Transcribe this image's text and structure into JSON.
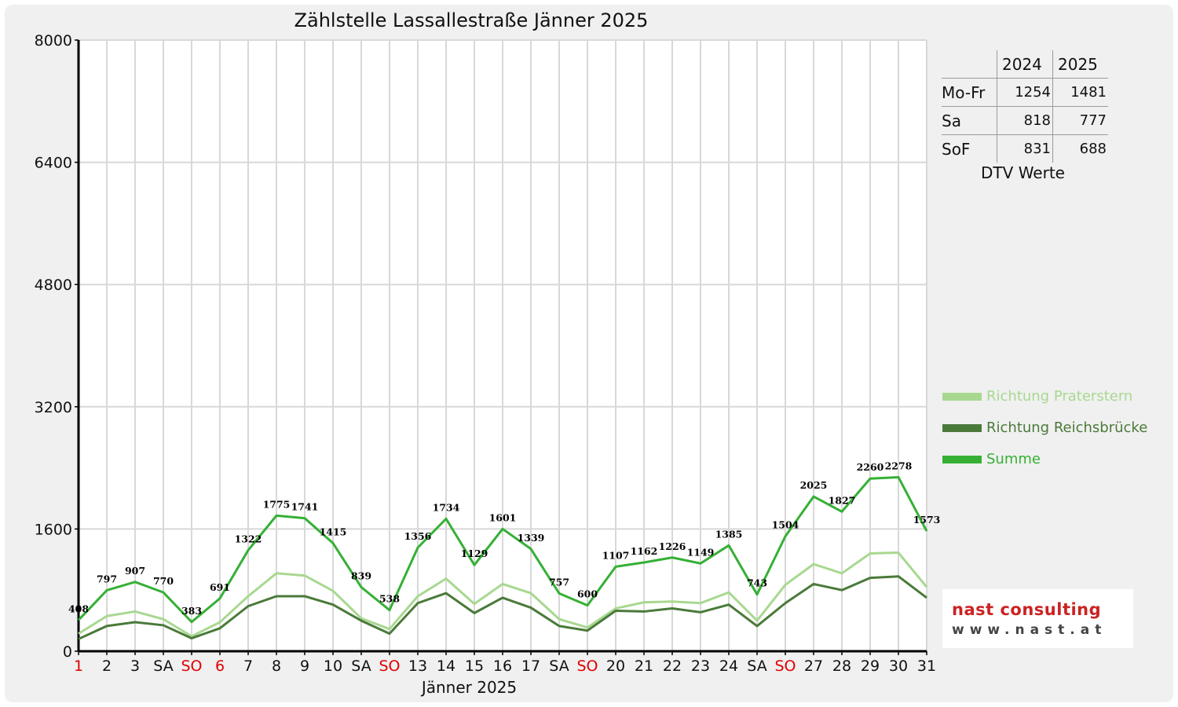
{
  "title": "Zählstelle Lassallestraße Jänner 2025",
  "chart_data": {
    "type": "line",
    "title": "Zählstelle Lassallestraße Jänner 2025",
    "xlabel": "Jänner 2025",
    "ylabel": "",
    "ylim": [
      0,
      8000
    ],
    "yticks": [
      0,
      1600,
      3200,
      4800,
      6400,
      8000
    ],
    "grid": true,
    "legend_position": "right",
    "categories": [
      "1",
      "2",
      "3",
      "SA",
      "SO",
      "6",
      "7",
      "8",
      "9",
      "10",
      "SA",
      "SO",
      "13",
      "14",
      "15",
      "16",
      "17",
      "SA",
      "SO",
      "20",
      "21",
      "22",
      "23",
      "24",
      "SA",
      "SO",
      "27",
      "28",
      "29",
      "30",
      "31"
    ],
    "red_categories": [
      0,
      4,
      5,
      11,
      18,
      25
    ],
    "series": [
      {
        "name": "Richtung Praterstern",
        "color": "#a8d890",
        "values": [
          230,
          460,
          520,
          420,
          195,
          380,
          720,
          1020,
          990,
          790,
          430,
          290,
          720,
          950,
          620,
          880,
          760,
          420,
          310,
          560,
          640,
          650,
          630,
          770,
          400,
          870,
          1140,
          1020,
          1280,
          1290,
          840
        ],
        "show_labels": false
      },
      {
        "name": "Richtung Reichsbrücke",
        "color": "#4a7a3a",
        "values": [
          160,
          330,
          380,
          340,
          170,
          300,
          590,
          720,
          720,
          610,
          400,
          230,
          630,
          760,
          500,
          700,
          570,
          330,
          270,
          530,
          520,
          560,
          510,
          610,
          330,
          630,
          880,
          800,
          960,
          980,
          700
        ],
        "show_labels": false
      },
      {
        "name": "Summe",
        "color": "#35b035",
        "values": [
          408,
          797,
          907,
          770,
          383,
          691,
          1322,
          1775,
          1741,
          1415,
          839,
          538,
          1356,
          1734,
          1129,
          1601,
          1339,
          757,
          600,
          1107,
          1162,
          1226,
          1149,
          1385,
          743,
          1504,
          2025,
          1827,
          2260,
          2278,
          1573
        ],
        "show_labels": true
      }
    ]
  },
  "dtv_table": {
    "caption": "DTV Werte",
    "years": [
      "2024",
      "2025"
    ],
    "rows": [
      {
        "label": "Mo-Fr",
        "values": [
          "1254",
          "1481"
        ]
      },
      {
        "label": "Sa",
        "values": [
          "818",
          "777"
        ]
      },
      {
        "label": "SoF",
        "values": [
          "831",
          "688"
        ]
      }
    ]
  },
  "legend": [
    {
      "label": "Richtung Praterstern",
      "color": "#a8d890"
    },
    {
      "label": "Richtung Reichsbrücke",
      "color": "#4a7a3a"
    },
    {
      "label": "Summe",
      "color": "#35b035"
    }
  ],
  "logo": {
    "line1": "nast consulting",
    "line2": "www.nast.at",
    "color1": "#cc2222"
  }
}
